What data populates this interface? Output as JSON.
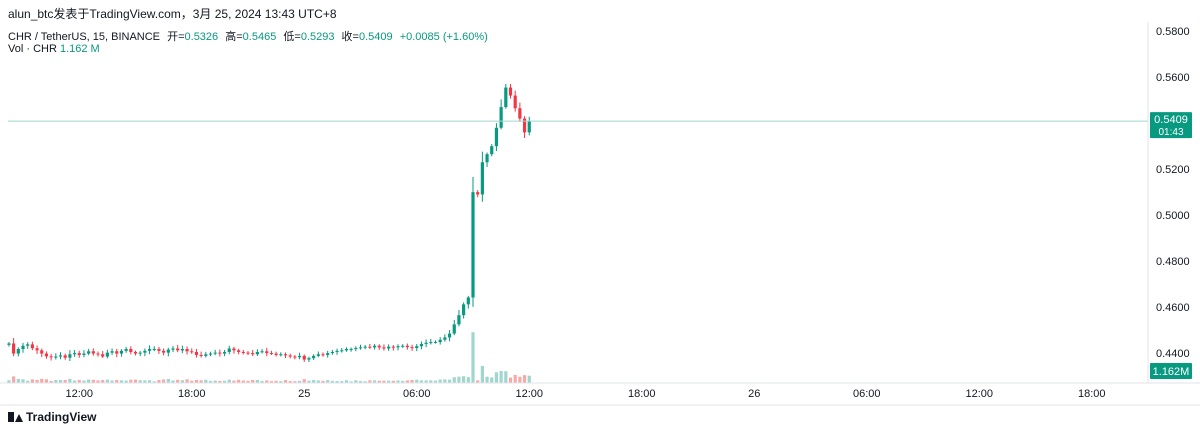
{
  "header": {
    "title": "alun_btc发表于TradingView.com，3月 25, 2024 13:43 UTC+8"
  },
  "legend": {
    "symbol": "CHR / TetherUS, 15, BINANCE",
    "open_label": "开=",
    "open": "0.5326",
    "high_label": "高=",
    "high": "0.5465",
    "low_label": "低=",
    "low": "0.5293",
    "close_label": "收=",
    "close": "0.5409",
    "change": "+0.0085 (+1.60%)"
  },
  "volume_legend": {
    "label": "Vol · CHR",
    "value": "1.162 M"
  },
  "badges": {
    "price": "0.5409",
    "countdown": "01:43",
    "volume": "1.162M"
  },
  "footer": {
    "brand": "TradingView"
  },
  "colors": {
    "up": "#089981",
    "down": "#f23645",
    "up_volume": "#9fd6cd",
    "down_volume": "#f7a9a7",
    "text": "#131722",
    "grid": "#e0e3eb"
  },
  "chart_data": {
    "type": "candlestick",
    "symbol": "CHR / TetherUS",
    "interval": "15",
    "exchange": "BINANCE",
    "y_ticks": [
      0.58,
      0.56,
      0.54,
      0.52,
      0.5,
      0.48,
      0.46,
      0.44
    ],
    "y_tick_labels": [
      "0.5800",
      "0.5600",
      "0.5400",
      "0.5200",
      "0.5000",
      "0.4800",
      "0.4600",
      "0.4400"
    ],
    "ylim": [
      0.427,
      0.584
    ],
    "last_price": 0.5409,
    "x_ticks": [
      "12:00",
      "18:00",
      "25",
      "06:00",
      "12:00",
      "18:00",
      "26",
      "06:00",
      "12:00",
      "18:00"
    ],
    "x_tick_hours": [
      12,
      18,
      24,
      30,
      36,
      42,
      48,
      54,
      60,
      66
    ],
    "x_range_hours": [
      8.2,
      69.0
    ],
    "candle_interval_hours": 0.25,
    "start_hour": 8.25,
    "max_volume_m": 2.6,
    "closes": [
      0.4442,
      0.4398,
      0.4418,
      0.4432,
      0.4438,
      0.4421,
      0.4412,
      0.4398,
      0.4386,
      0.4382,
      0.4385,
      0.439,
      0.438,
      0.4395,
      0.44,
      0.4392,
      0.4398,
      0.4408,
      0.4398,
      0.4395,
      0.4385,
      0.4402,
      0.4408,
      0.4398,
      0.441,
      0.4418,
      0.4405,
      0.4398,
      0.4402,
      0.441,
      0.4418,
      0.4418,
      0.441,
      0.4402,
      0.4415,
      0.442,
      0.4412,
      0.4418,
      0.4408,
      0.4405,
      0.4392,
      0.4388,
      0.4395,
      0.4398,
      0.4402,
      0.4398,
      0.4405,
      0.442,
      0.4412,
      0.4405,
      0.4402,
      0.44,
      0.4395,
      0.4405,
      0.4408,
      0.44,
      0.4398,
      0.4392,
      0.4395,
      0.439,
      0.4385,
      0.4382,
      0.4388,
      0.4372,
      0.4378,
      0.4388,
      0.4395,
      0.4392,
      0.44,
      0.4405,
      0.441,
      0.4412,
      0.4418,
      0.4418,
      0.4422,
      0.4425,
      0.4428,
      0.4425,
      0.4432,
      0.4425,
      0.442,
      0.4428,
      0.4425,
      0.443,
      0.4432,
      0.4426,
      0.4422,
      0.443,
      0.444,
      0.4445,
      0.4448,
      0.4448,
      0.4458,
      0.4468,
      0.4485,
      0.4525,
      0.4565,
      0.4612,
      0.4642,
      0.51,
      0.509,
      0.523,
      0.5265,
      0.53,
      0.538,
      0.547,
      0.5555,
      0.552,
      0.5465,
      0.542,
      0.536,
      0.5409
    ]
  }
}
